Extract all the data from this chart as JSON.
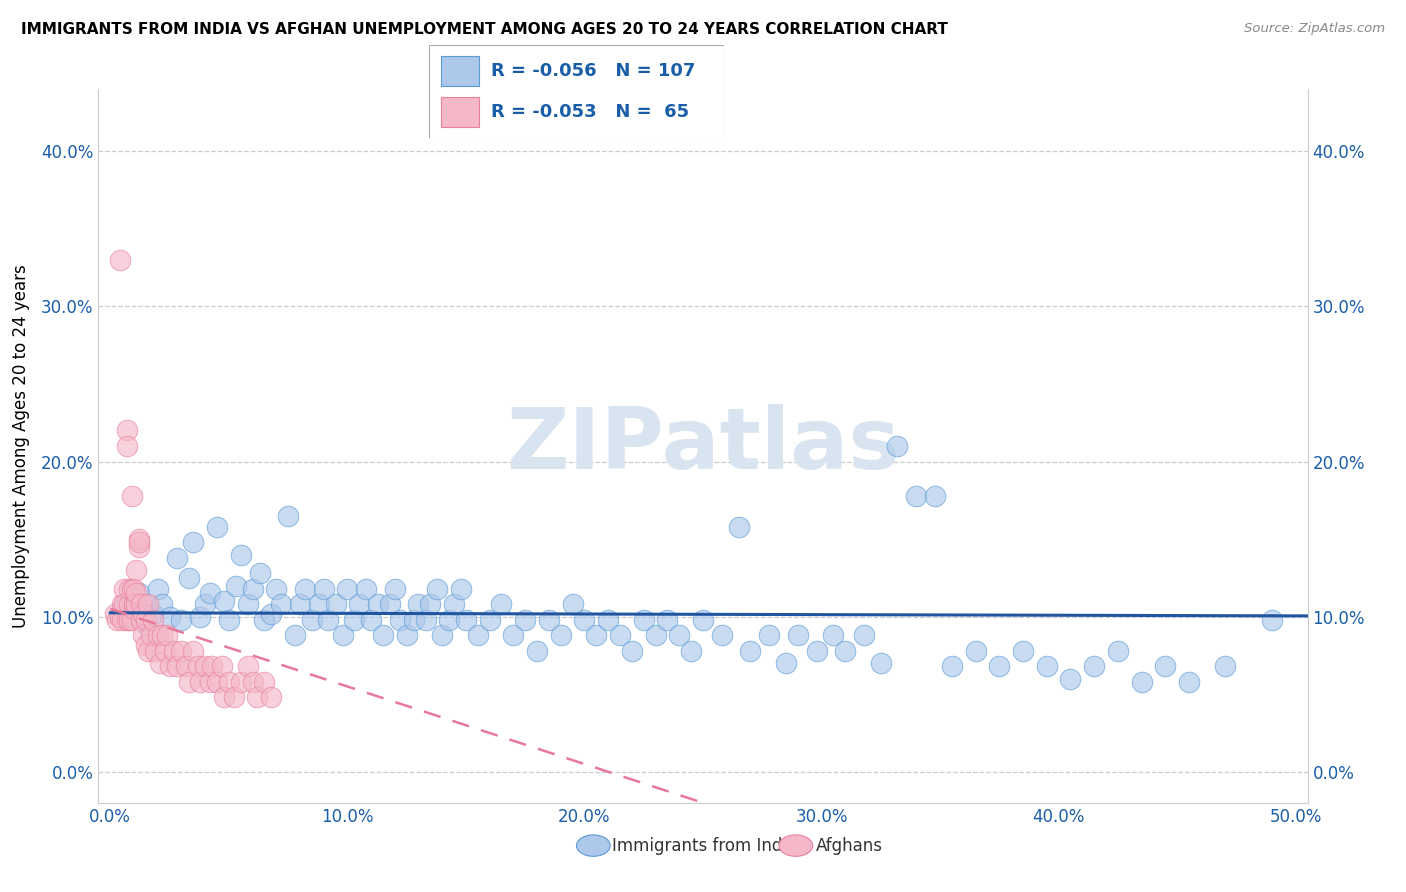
{
  "title": "IMMIGRANTS FROM INDIA VS AFGHAN UNEMPLOYMENT AMONG AGES 20 TO 24 YEARS CORRELATION CHART",
  "source": "Source: ZipAtlas.com",
  "ylabel": "Unemployment Among Ages 20 to 24 years",
  "xlim": [
    -0.005,
    0.505
  ],
  "ylim": [
    -0.02,
    0.44
  ],
  "x_tick_vals": [
    0.0,
    0.1,
    0.2,
    0.3,
    0.4,
    0.5
  ],
  "x_tick_labels": [
    "0.0%",
    "10.0%",
    "20.0%",
    "30.0%",
    "40.0%",
    "50.0%"
  ],
  "y_tick_vals": [
    0.0,
    0.1,
    0.2,
    0.3,
    0.4
  ],
  "y_tick_labels": [
    "0.0%",
    "10.0%",
    "20.0%",
    "30.0%",
    "40.0%"
  ],
  "legend_india_r": "-0.056",
  "legend_india_n": "107",
  "legend_afghan_r": "-0.053",
  "legend_afghan_n": "65",
  "india_face_color": "#adc8ea",
  "india_edge_color": "#5b9bd5",
  "afghan_face_color": "#f4b8c8",
  "afghan_edge_color": "#e87fa0",
  "india_line_color": "#2155a0",
  "afghan_line_color": "#e8789a",
  "legend_text_color": "#1a5ea8",
  "watermark_color": "#d8e4f0",
  "india_trend_slope": -0.004,
  "india_trend_intercept": 0.1025,
  "afghan_trend_slope": -0.5,
  "afghan_trend_intercept": 0.105,
  "india_scatter_x": [
    0.005,
    0.008,
    0.01,
    0.012,
    0.015,
    0.015,
    0.018,
    0.02,
    0.022,
    0.025,
    0.028,
    0.03,
    0.033,
    0.035,
    0.038,
    0.04,
    0.042,
    0.045,
    0.048,
    0.05,
    0.053,
    0.055,
    0.058,
    0.06,
    0.063,
    0.065,
    0.068,
    0.07,
    0.072,
    0.075,
    0.078,
    0.08,
    0.082,
    0.085,
    0.088,
    0.09,
    0.092,
    0.095,
    0.098,
    0.1,
    0.103,
    0.105,
    0.108,
    0.11,
    0.113,
    0.115,
    0.118,
    0.12,
    0.122,
    0.125,
    0.128,
    0.13,
    0.133,
    0.135,
    0.138,
    0.14,
    0.143,
    0.145,
    0.148,
    0.15,
    0.155,
    0.16,
    0.165,
    0.17,
    0.175,
    0.18,
    0.185,
    0.19,
    0.195,
    0.2,
    0.205,
    0.21,
    0.215,
    0.22,
    0.225,
    0.23,
    0.235,
    0.24,
    0.245,
    0.25,
    0.258,
    0.265,
    0.27,
    0.278,
    0.285,
    0.29,
    0.298,
    0.305,
    0.31,
    0.318,
    0.325,
    0.332,
    0.34,
    0.348,
    0.355,
    0.365,
    0.375,
    0.385,
    0.395,
    0.405,
    0.415,
    0.425,
    0.435,
    0.445,
    0.455,
    0.47,
    0.49
  ],
  "india_scatter_y": [
    0.105,
    0.1,
    0.11,
    0.115,
    0.095,
    0.108,
    0.102,
    0.118,
    0.108,
    0.1,
    0.138,
    0.098,
    0.125,
    0.148,
    0.1,
    0.108,
    0.115,
    0.158,
    0.11,
    0.098,
    0.12,
    0.14,
    0.108,
    0.118,
    0.128,
    0.098,
    0.102,
    0.118,
    0.108,
    0.165,
    0.088,
    0.108,
    0.118,
    0.098,
    0.108,
    0.118,
    0.098,
    0.108,
    0.088,
    0.118,
    0.098,
    0.108,
    0.118,
    0.098,
    0.108,
    0.088,
    0.108,
    0.118,
    0.098,
    0.088,
    0.098,
    0.108,
    0.098,
    0.108,
    0.118,
    0.088,
    0.098,
    0.108,
    0.118,
    0.098,
    0.088,
    0.098,
    0.108,
    0.088,
    0.098,
    0.078,
    0.098,
    0.088,
    0.108,
    0.098,
    0.088,
    0.098,
    0.088,
    0.078,
    0.098,
    0.088,
    0.098,
    0.088,
    0.078,
    0.098,
    0.088,
    0.158,
    0.078,
    0.088,
    0.07,
    0.088,
    0.078,
    0.088,
    0.078,
    0.088,
    0.07,
    0.21,
    0.178,
    0.178,
    0.068,
    0.078,
    0.068,
    0.078,
    0.068,
    0.06,
    0.068,
    0.078,
    0.058,
    0.068,
    0.058,
    0.068,
    0.098
  ],
  "afghan_scatter_x": [
    0.002,
    0.003,
    0.004,
    0.004,
    0.005,
    0.005,
    0.006,
    0.006,
    0.007,
    0.007,
    0.007,
    0.008,
    0.008,
    0.008,
    0.009,
    0.009,
    0.009,
    0.01,
    0.01,
    0.01,
    0.011,
    0.011,
    0.011,
    0.012,
    0.012,
    0.012,
    0.013,
    0.013,
    0.014,
    0.014,
    0.015,
    0.015,
    0.016,
    0.016,
    0.017,
    0.018,
    0.019,
    0.02,
    0.021,
    0.022,
    0.023,
    0.024,
    0.025,
    0.027,
    0.028,
    0.03,
    0.032,
    0.033,
    0.035,
    0.037,
    0.038,
    0.04,
    0.042,
    0.043,
    0.045,
    0.047,
    0.048,
    0.05,
    0.052,
    0.055,
    0.058,
    0.06,
    0.062,
    0.065,
    0.068
  ],
  "afghan_scatter_y": [
    0.102,
    0.098,
    0.33,
    0.1,
    0.108,
    0.098,
    0.118,
    0.108,
    0.098,
    0.22,
    0.21,
    0.108,
    0.118,
    0.098,
    0.118,
    0.178,
    0.098,
    0.105,
    0.118,
    0.108,
    0.108,
    0.115,
    0.13,
    0.145,
    0.15,
    0.148,
    0.108,
    0.098,
    0.102,
    0.088,
    0.098,
    0.082,
    0.108,
    0.078,
    0.088,
    0.098,
    0.078,
    0.088,
    0.07,
    0.088,
    0.078,
    0.088,
    0.068,
    0.078,
    0.068,
    0.078,
    0.068,
    0.058,
    0.078,
    0.068,
    0.058,
    0.068,
    0.058,
    0.068,
    0.058,
    0.068,
    0.048,
    0.058,
    0.048,
    0.058,
    0.068,
    0.058,
    0.048,
    0.058,
    0.048
  ]
}
